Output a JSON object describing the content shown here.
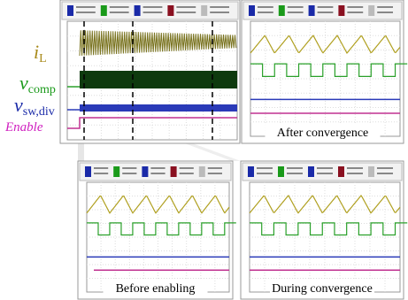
{
  "labels": {
    "il": {
      "symbol": "i",
      "sub": "L"
    },
    "vcomp": {
      "symbol": "v",
      "sub": "comp"
    },
    "vsw": {
      "symbol": "v",
      "sub": "sw,div"
    },
    "enable": "Enable"
  },
  "panels": {
    "after": "After convergence",
    "before": "Before enabling",
    "during": "During convergence"
  }
}
